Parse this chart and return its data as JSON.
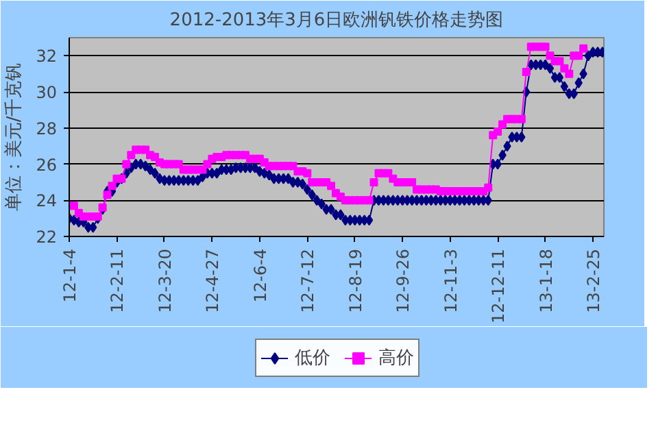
{
  "chart_data": {
    "type": "line",
    "title": "2012-2013年3月6日欧洲钒铁价格走势图",
    "ylabel": "单位：美元/千克钒",
    "categories": [
      "12-1-4",
      null,
      null,
      null,
      null,
      null,
      null,
      null,
      null,
      null,
      "12-2-11",
      null,
      null,
      null,
      null,
      null,
      null,
      null,
      null,
      null,
      "12-3-20",
      null,
      null,
      null,
      null,
      null,
      null,
      null,
      null,
      null,
      "12-4-27",
      null,
      null,
      null,
      null,
      null,
      null,
      null,
      null,
      null,
      "12-6-4",
      null,
      null,
      null,
      null,
      null,
      null,
      null,
      null,
      null,
      "12-7-12",
      null,
      null,
      null,
      null,
      null,
      null,
      null,
      null,
      null,
      "12-8-19",
      null,
      null,
      null,
      null,
      null,
      null,
      null,
      null,
      null,
      "12-9-26",
      null,
      null,
      null,
      null,
      null,
      null,
      null,
      null,
      null,
      "12-11-3",
      null,
      null,
      null,
      null,
      null,
      null,
      null,
      null,
      null,
      "12-12-11",
      null,
      null,
      null,
      null,
      null,
      null,
      null,
      null,
      null,
      "13-1-18",
      null,
      null,
      null,
      null,
      null,
      null,
      null,
      null,
      null,
      "13-2-25",
      null,
      null
    ],
    "series": [
      {
        "name": "低价",
        "color": "#000080",
        "marker": "diamond",
        "values": [
          23.0,
          22.9,
          22.8,
          22.8,
          22.5,
          22.5,
          23.0,
          23.5,
          24.5,
          24.5,
          25.0,
          25.2,
          25.5,
          25.8,
          26.0,
          26.0,
          25.9,
          25.7,
          25.5,
          25.2,
          25.1,
          25.1,
          25.1,
          25.1,
          25.1,
          25.1,
          25.1,
          25.1,
          25.3,
          25.5,
          25.5,
          25.5,
          25.7,
          25.7,
          25.7,
          25.8,
          25.8,
          25.8,
          25.8,
          25.8,
          25.6,
          25.5,
          25.4,
          25.2,
          25.2,
          25.2,
          25.2,
          25.0,
          25.0,
          24.9,
          24.6,
          24.3,
          24.0,
          23.8,
          23.5,
          23.5,
          23.2,
          23.2,
          22.9,
          22.9,
          22.9,
          22.9,
          22.9,
          22.9,
          24.0,
          24.0,
          24.0,
          24.0,
          24.0,
          24.0,
          24.0,
          24.0,
          24.0,
          24.0,
          24.0,
          24.0,
          24.0,
          24.0,
          24.0,
          24.0,
          24.0,
          24.0,
          24.0,
          24.0,
          24.0,
          24.0,
          24.0,
          24.0,
          24.0,
          26.0,
          26.0,
          26.5,
          27.0,
          27.5,
          27.5,
          27.5,
          30.0,
          31.5,
          31.5,
          31.5,
          31.5,
          31.3,
          30.8,
          30.8,
          30.3,
          29.9,
          29.9,
          30.5,
          31.0,
          32.0,
          32.2,
          32.2,
          32.2
        ]
      },
      {
        "name": "高价",
        "color": "#ff00ff",
        "marker": "square",
        "values": [
          23.7,
          23.7,
          23.3,
          23.1,
          23.1,
          23.1,
          23.1,
          23.6,
          24.3,
          24.8,
          25.2,
          25.2,
          26.0,
          26.5,
          26.8,
          26.8,
          26.8,
          26.5,
          26.4,
          26.1,
          26.0,
          26.0,
          26.0,
          26.0,
          25.7,
          25.7,
          25.7,
          25.7,
          25.7,
          26.0,
          26.3,
          26.4,
          26.4,
          26.5,
          26.5,
          26.5,
          26.5,
          26.5,
          26.3,
          26.3,
          26.3,
          26.1,
          25.9,
          25.9,
          25.9,
          25.9,
          25.9,
          25.9,
          25.6,
          25.6,
          25.5,
          25.0,
          25.0,
          25.0,
          25.0,
          24.8,
          24.4,
          24.2,
          24.0,
          24.0,
          24.0,
          24.0,
          24.0,
          24.0,
          25.0,
          25.5,
          25.5,
          25.5,
          25.2,
          25.0,
          25.0,
          25.0,
          25.0,
          24.6,
          24.6,
          24.6,
          24.6,
          24.6,
          24.5,
          24.5,
          24.5,
          24.5,
          24.5,
          24.5,
          24.5,
          24.5,
          24.5,
          24.5,
          24.7,
          27.6,
          27.8,
          28.2,
          28.5,
          28.5,
          28.5,
          28.5,
          31.1,
          32.5,
          32.5,
          32.5,
          32.5,
          32.0,
          31.7,
          31.7,
          31.3,
          31.0,
          32.0,
          32.0,
          32.4,
          null,
          null,
          null,
          null
        ]
      }
    ],
    "ylim": [
      22,
      33
    ],
    "yticks": [
      22,
      24,
      26,
      28,
      30,
      32
    ],
    "grid": "y",
    "legend": "bottom"
  }
}
